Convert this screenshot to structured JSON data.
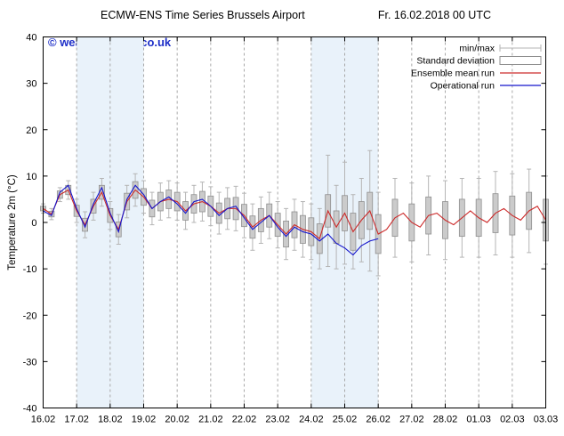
{
  "watermark": "© weatheronline.co.uk",
  "chart_data": {
    "type": "line",
    "title": "ECMW-ENS Time Series Brussels Airport",
    "run": "Fr. 16.02.2018 00 UTC",
    "xlabel": "",
    "ylabel": "Temperature 2m (°C)",
    "ylim": [
      -40,
      40
    ],
    "xlim": [
      0,
      15
    ],
    "yticks": [
      -40,
      -30,
      -20,
      -10,
      0,
      10,
      20,
      30,
      40
    ],
    "xticks": [
      "16.02",
      "17.02",
      "18.02",
      "19.02",
      "20.02",
      "21.02",
      "22.02",
      "23.02",
      "24.02",
      "25.02",
      "26.02",
      "27.02",
      "28.02",
      "01.03",
      "02.03",
      "03.03"
    ],
    "grid": "vertical-dashed",
    "legend_position": "top-right",
    "shaded_bands": [
      [
        1,
        3
      ],
      [
        8,
        10
      ]
    ],
    "step_days": 0.25,
    "legend": [
      {
        "label": "min/max",
        "type": "minmax"
      },
      {
        "label": "Standard deviation",
        "type": "box"
      },
      {
        "label": "Ensemble mean run",
        "type": "line",
        "color": "#cc2a2a"
      },
      {
        "label": "Operational run",
        "type": "line",
        "color": "#1515cc"
      }
    ],
    "series": {
      "ensemble_mean": [
        3.0,
        1.8,
        6.0,
        7.0,
        2.5,
        -0.5,
        3.5,
        6.5,
        1.5,
        -1.5,
        4.5,
        7.0,
        5.5,
        3.0,
        4.5,
        5.0,
        4.5,
        2.5,
        4.0,
        4.5,
        3.5,
        2.0,
        3.0,
        3.0,
        1.5,
        -1.0,
        0.5,
        1.5,
        -0.5,
        -2.5,
        -0.5,
        -1.5,
        -2.0,
        -3.5,
        2.5,
        -1.0,
        2.0,
        -2.0,
        0.5,
        2.5,
        -2.5,
        -1.5,
        1.0,
        2.0,
        0.0,
        -1.0,
        1.5,
        2.0,
        0.5,
        -0.5,
        1.0,
        2.5,
        1.0,
        0.0,
        2.0,
        3.0,
        1.5,
        0.5,
        2.5,
        3.5,
        0.5
      ],
      "operational": [
        2.5,
        1.5,
        6.5,
        8.0,
        3.0,
        -1.0,
        4.0,
        7.5,
        2.0,
        -2.0,
        5.0,
        8.0,
        6.0,
        3.0,
        4.5,
        5.5,
        4.0,
        2.0,
        4.5,
        5.0,
        3.5,
        1.5,
        3.0,
        3.5,
        1.0,
        -1.5,
        0.0,
        1.5,
        -1.0,
        -3.0,
        -1.0,
        -2.0,
        -2.5,
        -4.0,
        -2.5,
        -4.5,
        -5.5,
        -7.0,
        -5.0,
        -4.0,
        -3.5
      ],
      "std_halfwidth": [
        0.5,
        0.6,
        0.8,
        1.0,
        1.2,
        1.4,
        1.5,
        1.5,
        1.5,
        1.6,
        1.8,
        1.8,
        1.8,
        1.8,
        2.0,
        2.0,
        2.0,
        2.0,
        2.0,
        2.2,
        2.2,
        2.2,
        2.2,
        2.4,
        2.4,
        2.4,
        2.5,
        2.5,
        2.5,
        2.8,
        2.8,
        3.0,
        3.0,
        3.2,
        3.5,
        3.5,
        3.8,
        4.0,
        4.0,
        4.0,
        4.2,
        4.0,
        4.0,
        4.0,
        4.0,
        4.0,
        4.0,
        4.0,
        4.0,
        4.0,
        4.0,
        4.0,
        4.0,
        4.2,
        4.2,
        4.2,
        4.2,
        4.0,
        4.0,
        4.2,
        4.5
      ],
      "minmax_halfwidth": [
        1.0,
        1.2,
        1.5,
        2.0,
        2.5,
        2.8,
        3.0,
        3.0,
        3.0,
        3.2,
        3.5,
        3.5,
        3.5,
        3.5,
        4.0,
        4.0,
        4.0,
        4.0,
        4.0,
        4.2,
        4.2,
        4.5,
        4.5,
        4.8,
        4.8,
        5.0,
        5.0,
        5.0,
        5.0,
        5.5,
        5.5,
        6.0,
        6.0,
        6.5,
        12.0,
        9.0,
        11.0,
        8.0,
        9.0,
        13.0,
        9.0,
        8.5,
        8.5,
        8.5,
        8.5,
        8.0,
        8.5,
        8.5,
        8.5,
        8.0,
        8.5,
        9.0,
        8.5,
        8.5,
        9.0,
        9.0,
        9.0,
        8.5,
        9.0,
        9.0,
        9.5
      ]
    },
    "colors": {
      "band": "#e9f2fa",
      "grid": "#a8a8a8",
      "whisker": "#b5b5b5",
      "box_fill": "#cbcbcb",
      "box_stroke": "#8f8f8f",
      "mean": "#cc2a2a",
      "operational": "#1515cc",
      "watermark": "#1e2fc8"
    }
  }
}
